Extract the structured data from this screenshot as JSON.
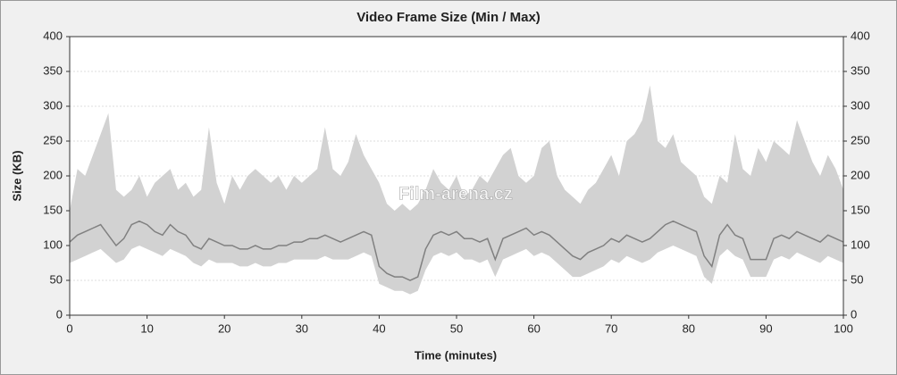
{
  "chart_data": {
    "type": "band",
    "title": "Video Frame Size (Min / Max)",
    "x_label": "Time (minutes)",
    "y_label": "Size (KB)",
    "watermark": "Film-arena.cz",
    "x": [
      0,
      1,
      2,
      3,
      4,
      5,
      6,
      7,
      8,
      9,
      10,
      11,
      12,
      13,
      14,
      15,
      16,
      17,
      18,
      19,
      20,
      21,
      22,
      23,
      24,
      25,
      26,
      27,
      28,
      29,
      30,
      31,
      32,
      33,
      34,
      35,
      36,
      37,
      38,
      39,
      40,
      41,
      42,
      43,
      44,
      45,
      46,
      47,
      48,
      49,
      50,
      51,
      52,
      53,
      54,
      55,
      56,
      57,
      58,
      59,
      60,
      61,
      62,
      63,
      64,
      65,
      66,
      67,
      68,
      69,
      70,
      71,
      72,
      73,
      74,
      75,
      76,
      77,
      78,
      79,
      80,
      81,
      82,
      83,
      84,
      85,
      86,
      87,
      88,
      89,
      90,
      91,
      92,
      93,
      94,
      95,
      96,
      97,
      98,
      99,
      100
    ],
    "series": [
      {
        "color": "#d2d2d2",
        "values": [
          150,
          210,
          200,
          230,
          260,
          290,
          180,
          170,
          180,
          200,
          170,
          190,
          200,
          210,
          180,
          190,
          170,
          180,
          270,
          190,
          160,
          200,
          180,
          200,
          210,
          200,
          190,
          200,
          180,
          200,
          190,
          200,
          210,
          270,
          210,
          200,
          220,
          260,
          230,
          210,
          190,
          160,
          150,
          160,
          150,
          160,
          180,
          210,
          190,
          180,
          200,
          170,
          180,
          200,
          190,
          210,
          230,
          240,
          200,
          190,
          200,
          240,
          250,
          200,
          180,
          170,
          160,
          180,
          190,
          210,
          230,
          200,
          250,
          260,
          280,
          330,
          250,
          240,
          260,
          220,
          210,
          200,
          170,
          160,
          200,
          190,
          260,
          210,
          200,
          240,
          220,
          250,
          240,
          230,
          280,
          250,
          220,
          200,
          230,
          210,
          180
        ],
        "low": [
          75,
          80,
          85,
          90,
          95,
          85,
          75,
          80,
          95,
          100,
          95,
          90,
          85,
          95,
          90,
          85,
          75,
          70,
          80,
          75,
          75,
          75,
          70,
          70,
          75,
          70,
          70,
          75,
          75,
          80,
          80,
          80,
          80,
          85,
          80,
          80,
          80,
          85,
          90,
          85,
          45,
          40,
          35,
          35,
          30,
          35,
          65,
          85,
          90,
          85,
          90,
          80,
          80,
          75,
          80,
          55,
          80,
          85,
          90,
          95,
          85,
          90,
          85,
          75,
          65,
          55,
          55,
          60,
          65,
          70,
          80,
          75,
          85,
          80,
          75,
          80,
          90,
          95,
          100,
          95,
          90,
          85,
          55,
          45,
          85,
          95,
          85,
          80,
          55,
          55,
          55,
          80,
          85,
          80,
          90,
          85,
          80,
          75,
          85,
          80,
          75
        ]
      },
      {
        "color": "#808080",
        "values": [
          105,
          115,
          120,
          125,
          130,
          115,
          100,
          110,
          130,
          135,
          130,
          120,
          115,
          130,
          120,
          115,
          100,
          95,
          110,
          105,
          100,
          100,
          95,
          95,
          100,
          95,
          95,
          100,
          100,
          105,
          105,
          110,
          110,
          115,
          110,
          105,
          110,
          115,
          120,
          115,
          70,
          60,
          55,
          55,
          50,
          55,
          95,
          115,
          120,
          115,
          120,
          110,
          110,
          105,
          110,
          80,
          110,
          115,
          120,
          125,
          115,
          120,
          115,
          105,
          95,
          85,
          80,
          90,
          95,
          100,
          110,
          105,
          115,
          110,
          105,
          110,
          120,
          130,
          135,
          130,
          125,
          120,
          85,
          70,
          115,
          130,
          115,
          110,
          80,
          80,
          80,
          110,
          115,
          110,
          120,
          115,
          110,
          105,
          115,
          110,
          105
        ]
      }
    ],
    "xlim": [
      0,
      100
    ],
    "xticks": [
      0,
      10,
      20,
      30,
      40,
      50,
      60,
      70,
      80,
      90,
      100
    ],
    "ylim": [
      0,
      400
    ],
    "yticks": [
      0,
      50,
      100,
      150,
      200,
      250,
      300,
      350,
      400
    ],
    "grid": true
  }
}
